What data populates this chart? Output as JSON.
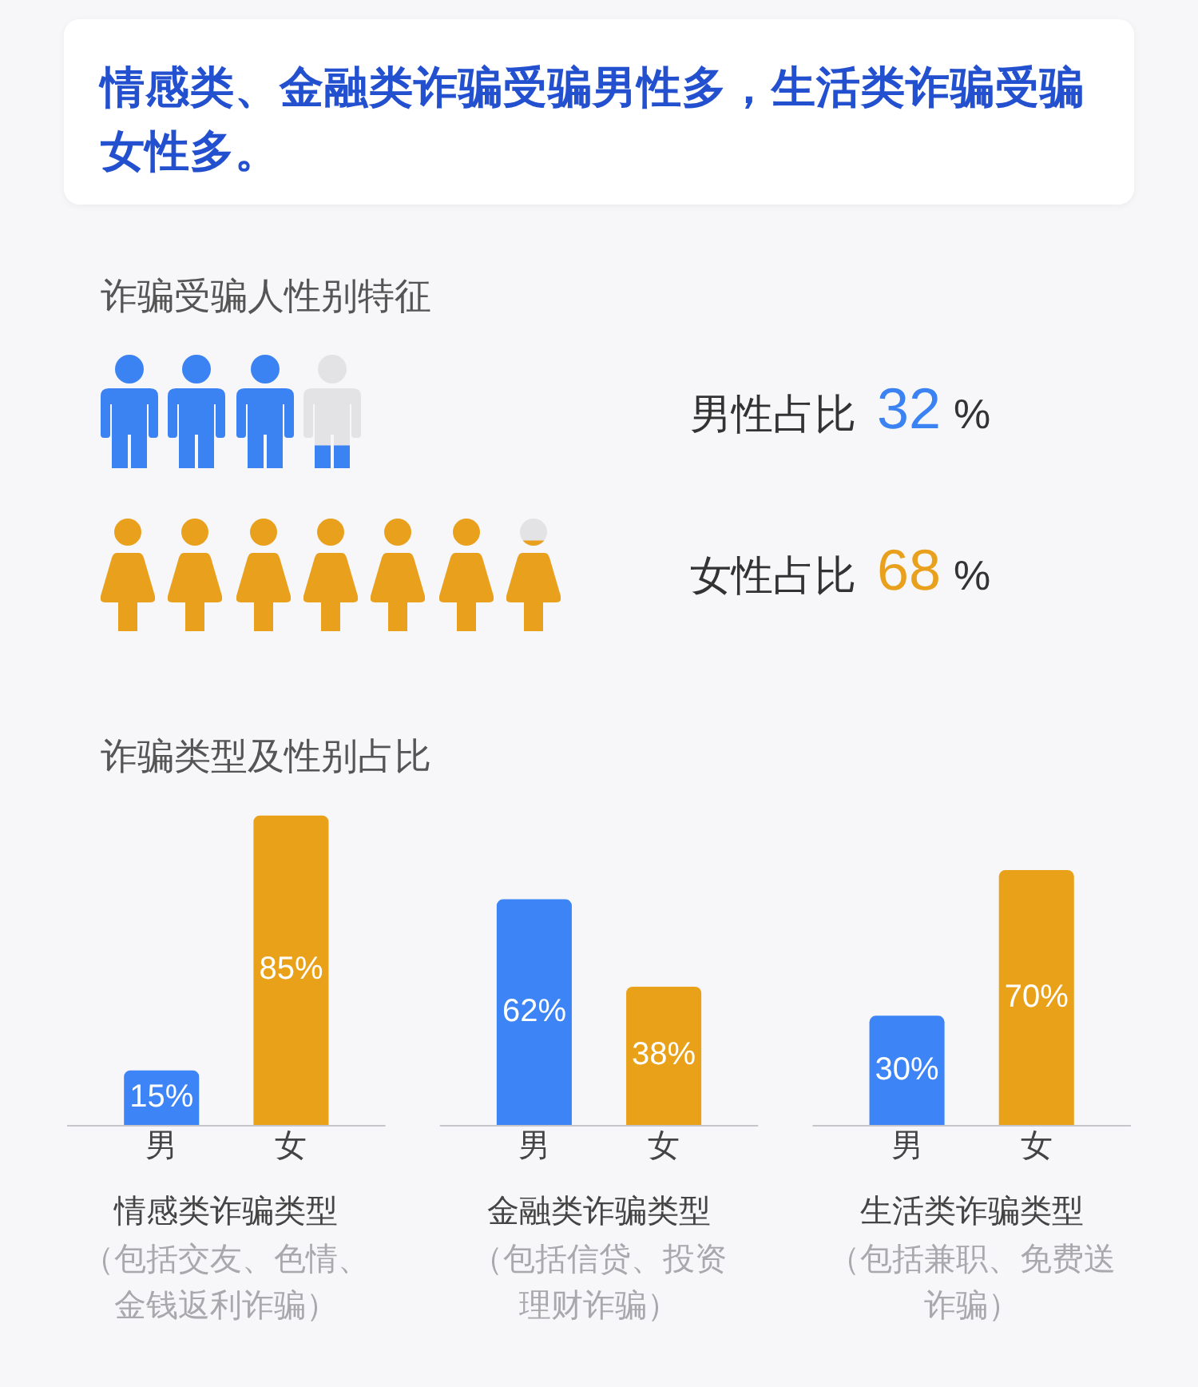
{
  "chart_data": [
    {
      "type": "other",
      "title": "情感类、金融类诈骗受骗男性多，生活类诈骗受骗女性多。"
    },
    {
      "type": "other",
      "title": "诈骗受骗人性别特征",
      "categories": [
        "男性占比",
        "女性占比"
      ],
      "values": [
        32,
        68
      ],
      "value_labels": [
        "32 %",
        "68 %"
      ],
      "colors": [
        "#3b82f2",
        "#e9a11d"
      ]
    },
    {
      "type": "bar",
      "title": "诈骗类型及性别占比",
      "categories": [
        "情感类诈骗类型",
        "金融类诈骗类型",
        "生活类诈骗类型"
      ],
      "series": [
        {
          "name": "男",
          "color": "#3d85f6",
          "values": [
            15,
            62,
            30
          ],
          "value_labels": [
            "15%",
            "62%",
            "30%"
          ]
        },
        {
          "name": "女",
          "color": "#eaa11a",
          "values": [
            85,
            38,
            70
          ],
          "value_labels": [
            "85%",
            "38%",
            "70%"
          ]
        }
      ],
      "tick_labels": "x",
      "annotations": [
        "（包括交友、色情、金钱返利诈骗）",
        "（包括信贷、投资理财诈骗）",
        "（包括兼职、免费送诈骗）"
      ]
    }
  ]
}
